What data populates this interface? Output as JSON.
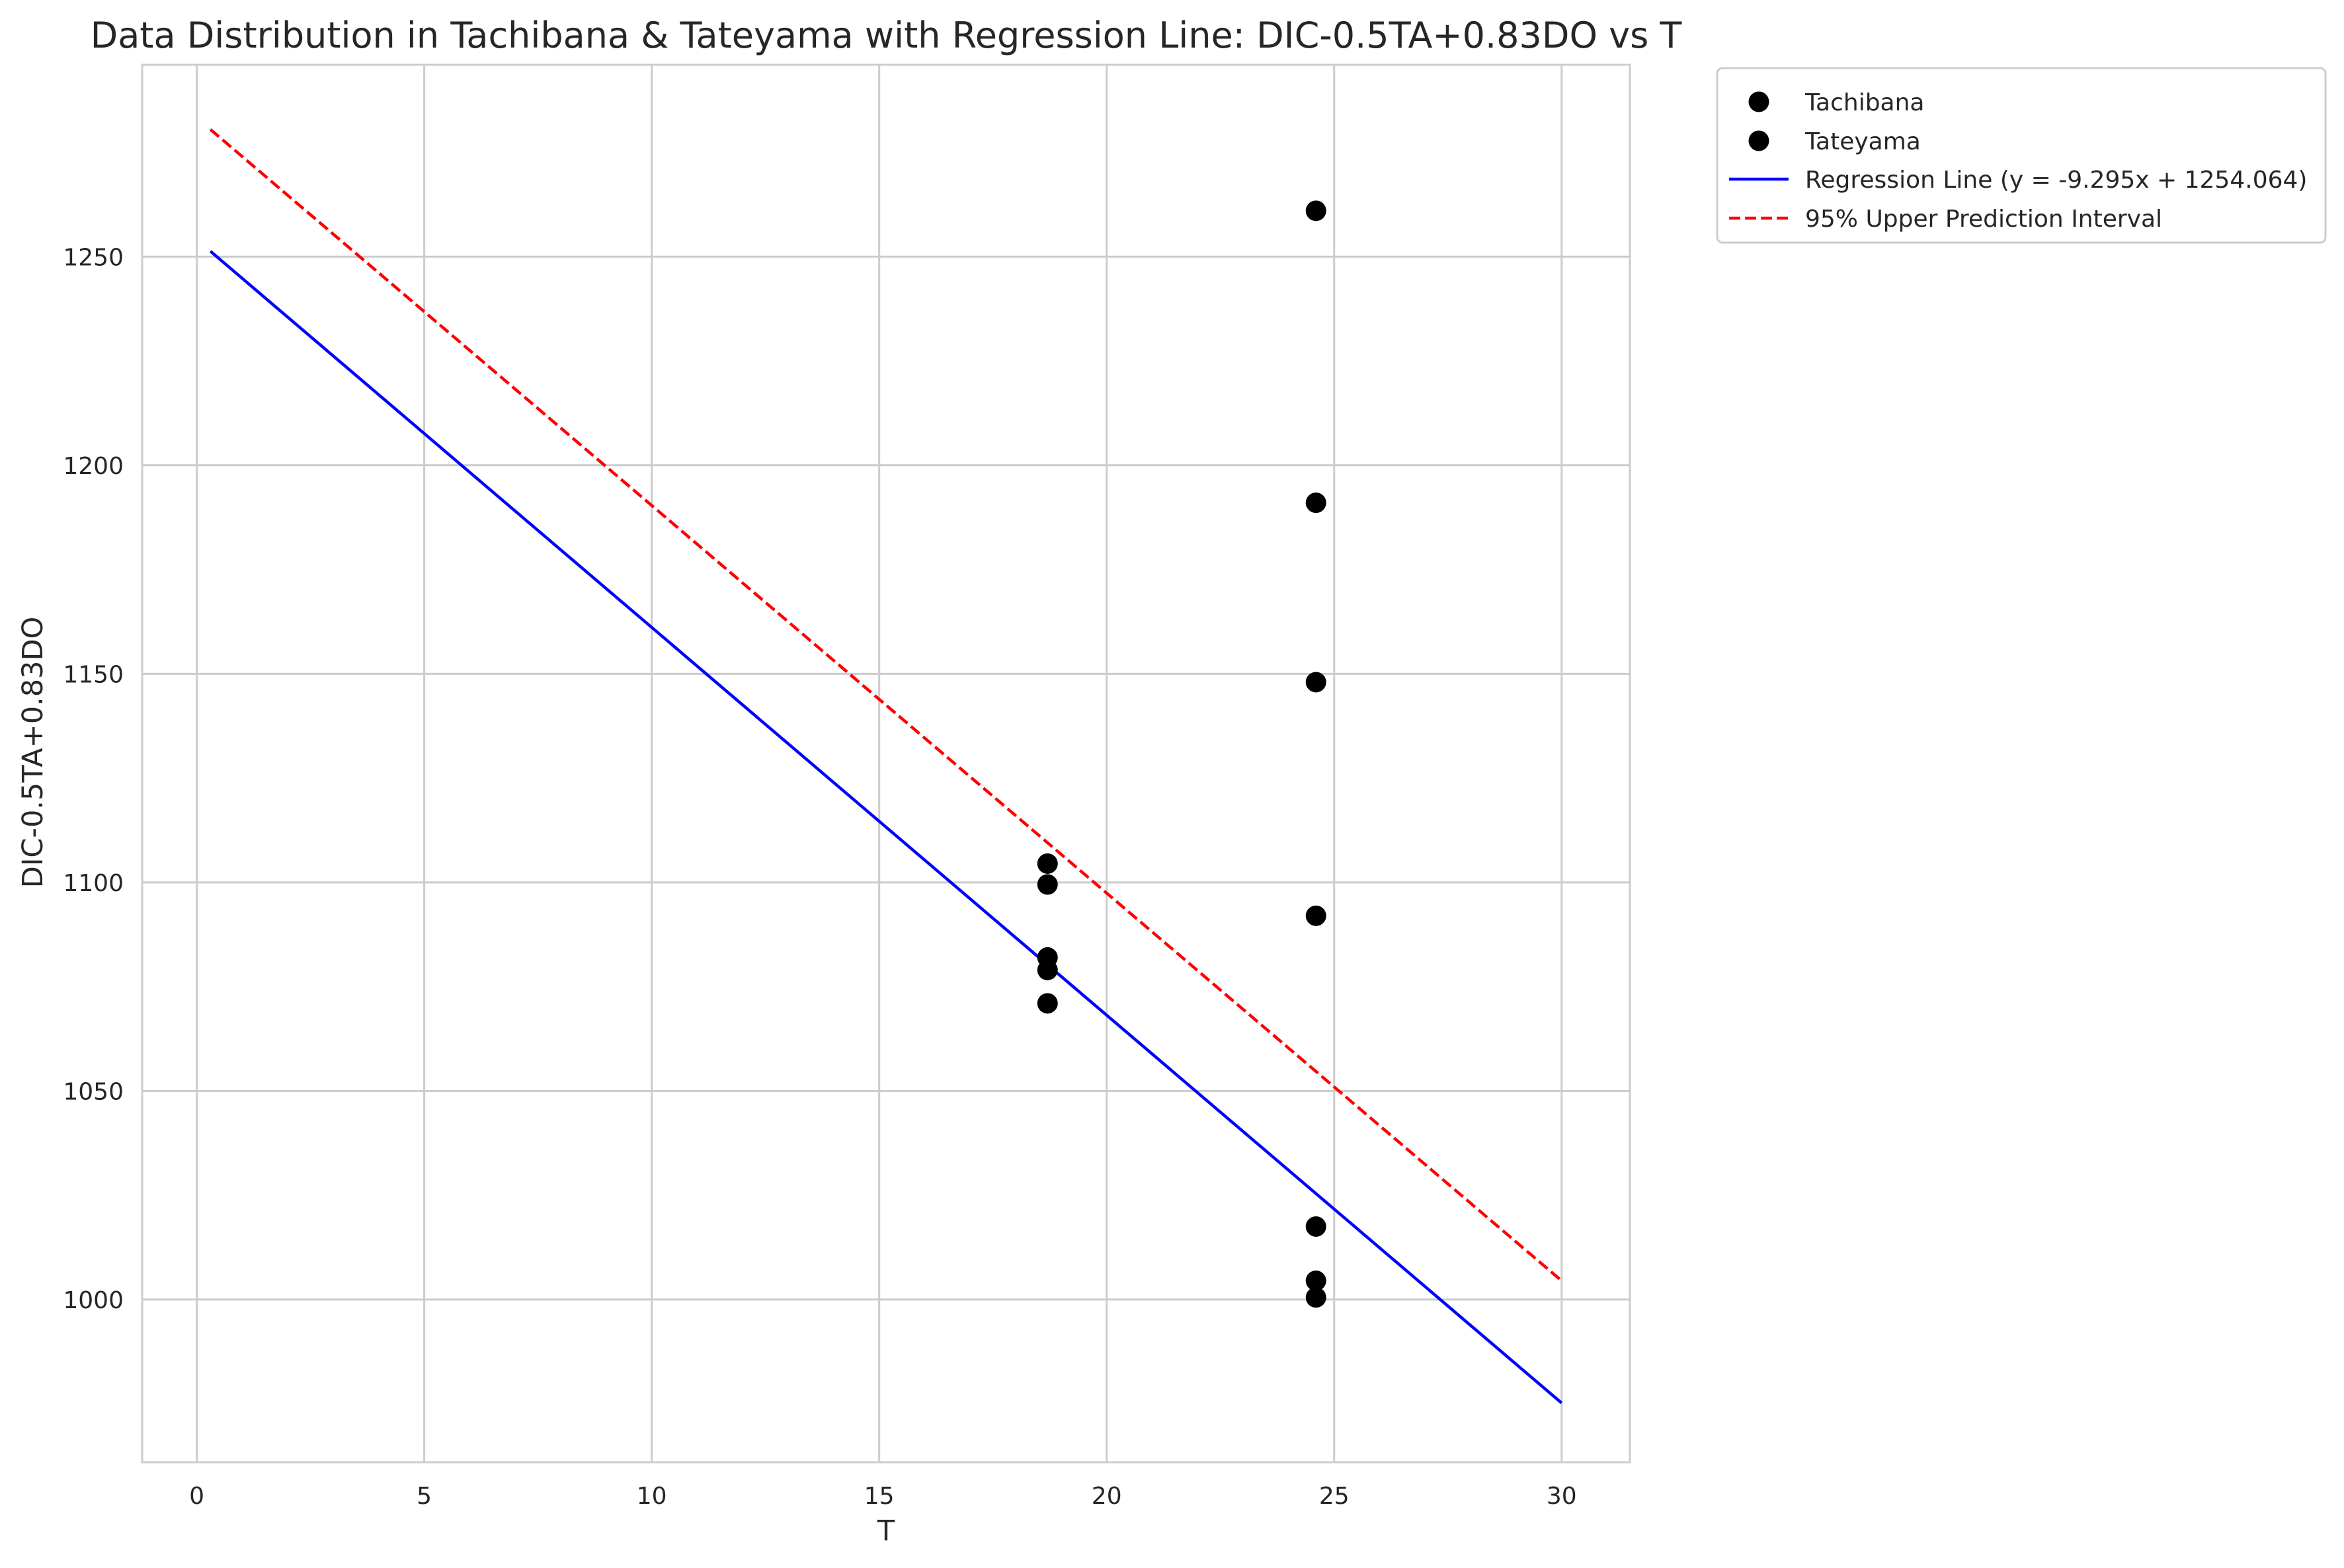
{
  "chart_data": {
    "type": "scatter",
    "title": "Data Distribution in Tachibana & Tateyama with Regression Line: DIC-0.5TA+0.83DO vs T",
    "xlabel": "T",
    "ylabel": "DIC-0.5TA+0.83DO",
    "xlim": [
      -1.2,
      31.5
    ],
    "ylim": [
      961,
      1296
    ],
    "x_ticks": [
      0,
      5,
      10,
      15,
      20,
      25,
      30
    ],
    "y_ticks": [
      1000,
      1050,
      1100,
      1150,
      1200,
      1250
    ],
    "grid": true,
    "legend_position": "outside-top-right",
    "series": [
      {
        "name": "Tachibana",
        "kind": "scatter",
        "color": "#000000",
        "points": [
          {
            "x": 18.7,
            "y": 1104.5
          },
          {
            "x": 18.7,
            "y": 1099.5
          },
          {
            "x": 18.7,
            "y": 1082
          },
          {
            "x": 18.7,
            "y": 1079
          },
          {
            "x": 18.7,
            "y": 1071
          }
        ]
      },
      {
        "name": "Tateyama",
        "kind": "scatter",
        "color": "#000000",
        "points": [
          {
            "x": 24.6,
            "y": 1261
          },
          {
            "x": 24.6,
            "y": 1191
          },
          {
            "x": 24.6,
            "y": 1148
          },
          {
            "x": 24.6,
            "y": 1092
          },
          {
            "x": 24.6,
            "y": 1017.5
          },
          {
            "x": 24.6,
            "y": 1004.5
          },
          {
            "x": 24.6,
            "y": 1000.5
          }
        ]
      },
      {
        "name": "Regression Line (y = -9.295x + 1254.064)",
        "kind": "line",
        "color": "#0000ff",
        "dash": "solid",
        "points": [
          {
            "x": 0.3,
            "y": 1251.3
          },
          {
            "x": 30.0,
            "y": 975.2
          }
        ]
      },
      {
        "name": "95% Upper Prediction Interval",
        "kind": "line",
        "color": "#ff0000",
        "dash": "dashed",
        "points": [
          {
            "x": 0.3,
            "y": 1280.5
          },
          {
            "x": 30.0,
            "y": 1004.5
          }
        ]
      }
    ]
  }
}
